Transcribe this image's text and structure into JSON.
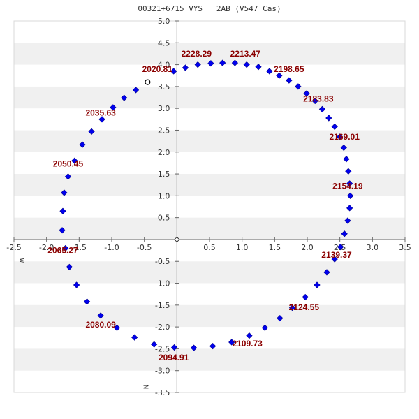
{
  "title": "00321+6715 VYS   2AB (V547 Cas)",
  "colors": {
    "point": "#0000ee",
    "annotation": "#8b0000",
    "band": "#f0f0f0",
    "axis": "#666666"
  },
  "chart_data": {
    "type": "scatter",
    "title": "00321+6715 VYS   2AB (V547 Cas)",
    "xlim": [
      -2.5,
      3.5
    ],
    "ylim": [
      -3.5,
      5.0
    ],
    "x_ticks": [
      -2.5,
      -2.0,
      -1.5,
      -1.0,
      -0.5,
      0.5,
      1.0,
      1.5,
      2.0,
      2.5,
      3.0,
      3.5
    ],
    "y_ticks": [
      5.0,
      4.5,
      4.0,
      3.5,
      3.0,
      2.5,
      2.0,
      1.5,
      1.0,
      0.5,
      -0.5,
      -1.0,
      -1.5,
      -2.0,
      -2.5,
      -3.0,
      -3.5
    ],
    "x_axis_label": "W",
    "y_axis_label": "N",
    "grid": "alternating horizontal bands",
    "origin_marker": [
      0.0,
      0.0
    ],
    "observed_point": [
      -0.45,
      3.6
    ],
    "series": [
      {
        "points": [
          [
            -0.05,
            3.85
          ],
          [
            0.13,
            3.93
          ],
          [
            0.32,
            4.0
          ],
          [
            0.52,
            4.03
          ],
          [
            0.7,
            4.04
          ],
          [
            0.89,
            4.04
          ],
          [
            1.07,
            4.0
          ],
          [
            1.25,
            3.95
          ],
          [
            1.42,
            3.85
          ],
          [
            1.57,
            3.75
          ],
          [
            1.72,
            3.64
          ],
          [
            1.86,
            3.5
          ],
          [
            1.99,
            3.34
          ],
          [
            2.12,
            3.17
          ],
          [
            2.23,
            2.98
          ],
          [
            2.33,
            2.78
          ],
          [
            2.42,
            2.58
          ],
          [
            2.5,
            2.35
          ],
          [
            2.56,
            2.1
          ],
          [
            2.6,
            1.84
          ],
          [
            2.63,
            1.56
          ],
          [
            2.65,
            1.28
          ],
          [
            2.66,
            1.0
          ],
          [
            2.65,
            0.72
          ],
          [
            2.62,
            0.43
          ],
          [
            2.57,
            0.13
          ],
          [
            2.51,
            -0.17
          ],
          [
            2.42,
            -0.45
          ],
          [
            2.3,
            -0.75
          ],
          [
            2.15,
            -1.04
          ],
          [
            1.97,
            -1.32
          ],
          [
            1.77,
            -1.56
          ],
          [
            1.58,
            -1.8
          ],
          [
            1.35,
            -2.02
          ],
          [
            1.11,
            -2.2
          ],
          [
            0.84,
            -2.35
          ],
          [
            0.55,
            -2.44
          ],
          [
            0.26,
            -2.48
          ],
          [
            -0.04,
            -2.47
          ],
          [
            -0.35,
            -2.4
          ],
          [
            -0.65,
            -2.24
          ],
          [
            -0.92,
            -2.02
          ],
          [
            -1.17,
            -1.74
          ],
          [
            -1.38,
            -1.42
          ],
          [
            -1.54,
            -1.04
          ],
          [
            -1.65,
            -0.63
          ],
          [
            -1.71,
            -0.2
          ],
          [
            -1.76,
            0.21
          ],
          [
            -1.75,
            0.65
          ],
          [
            -1.73,
            1.07
          ],
          [
            -1.67,
            1.44
          ],
          [
            -1.57,
            1.8
          ],
          [
            -1.45,
            2.17
          ],
          [
            -1.31,
            2.47
          ],
          [
            -1.15,
            2.75
          ],
          [
            -0.98,
            3.02
          ],
          [
            -0.81,
            3.24
          ],
          [
            -0.63,
            3.42
          ]
        ]
      }
    ],
    "annotations": [
      {
        "text": "2020.81",
        "x": -0.3,
        "y": 3.9
      },
      {
        "text": "2228.29",
        "x": 0.3,
        "y": 4.25
      },
      {
        "text": "2213.47",
        "x": 1.05,
        "y": 4.25
      },
      {
        "text": "2198.65",
        "x": 1.72,
        "y": 3.9
      },
      {
        "text": "2183.83",
        "x": 2.17,
        "y": 3.22
      },
      {
        "text": "2169.01",
        "x": 2.57,
        "y": 2.35
      },
      {
        "text": "2154.19",
        "x": 2.62,
        "y": 1.22
      },
      {
        "text": "2139.37",
        "x": 2.45,
        "y": -0.35
      },
      {
        "text": "2124.55",
        "x": 1.95,
        "y": -1.55
      },
      {
        "text": "2109.73",
        "x": 1.08,
        "y": -2.38
      },
      {
        "text": "2094.91",
        "x": -0.05,
        "y": -2.7
      },
      {
        "text": "2080.09",
        "x": -1.17,
        "y": -1.95
      },
      {
        "text": "2065.27",
        "x": -1.75,
        "y": -0.25
      },
      {
        "text": "2050.45",
        "x": -1.67,
        "y": 1.73
      },
      {
        "text": "2035.63",
        "x": -1.17,
        "y": 2.9
      }
    ]
  }
}
